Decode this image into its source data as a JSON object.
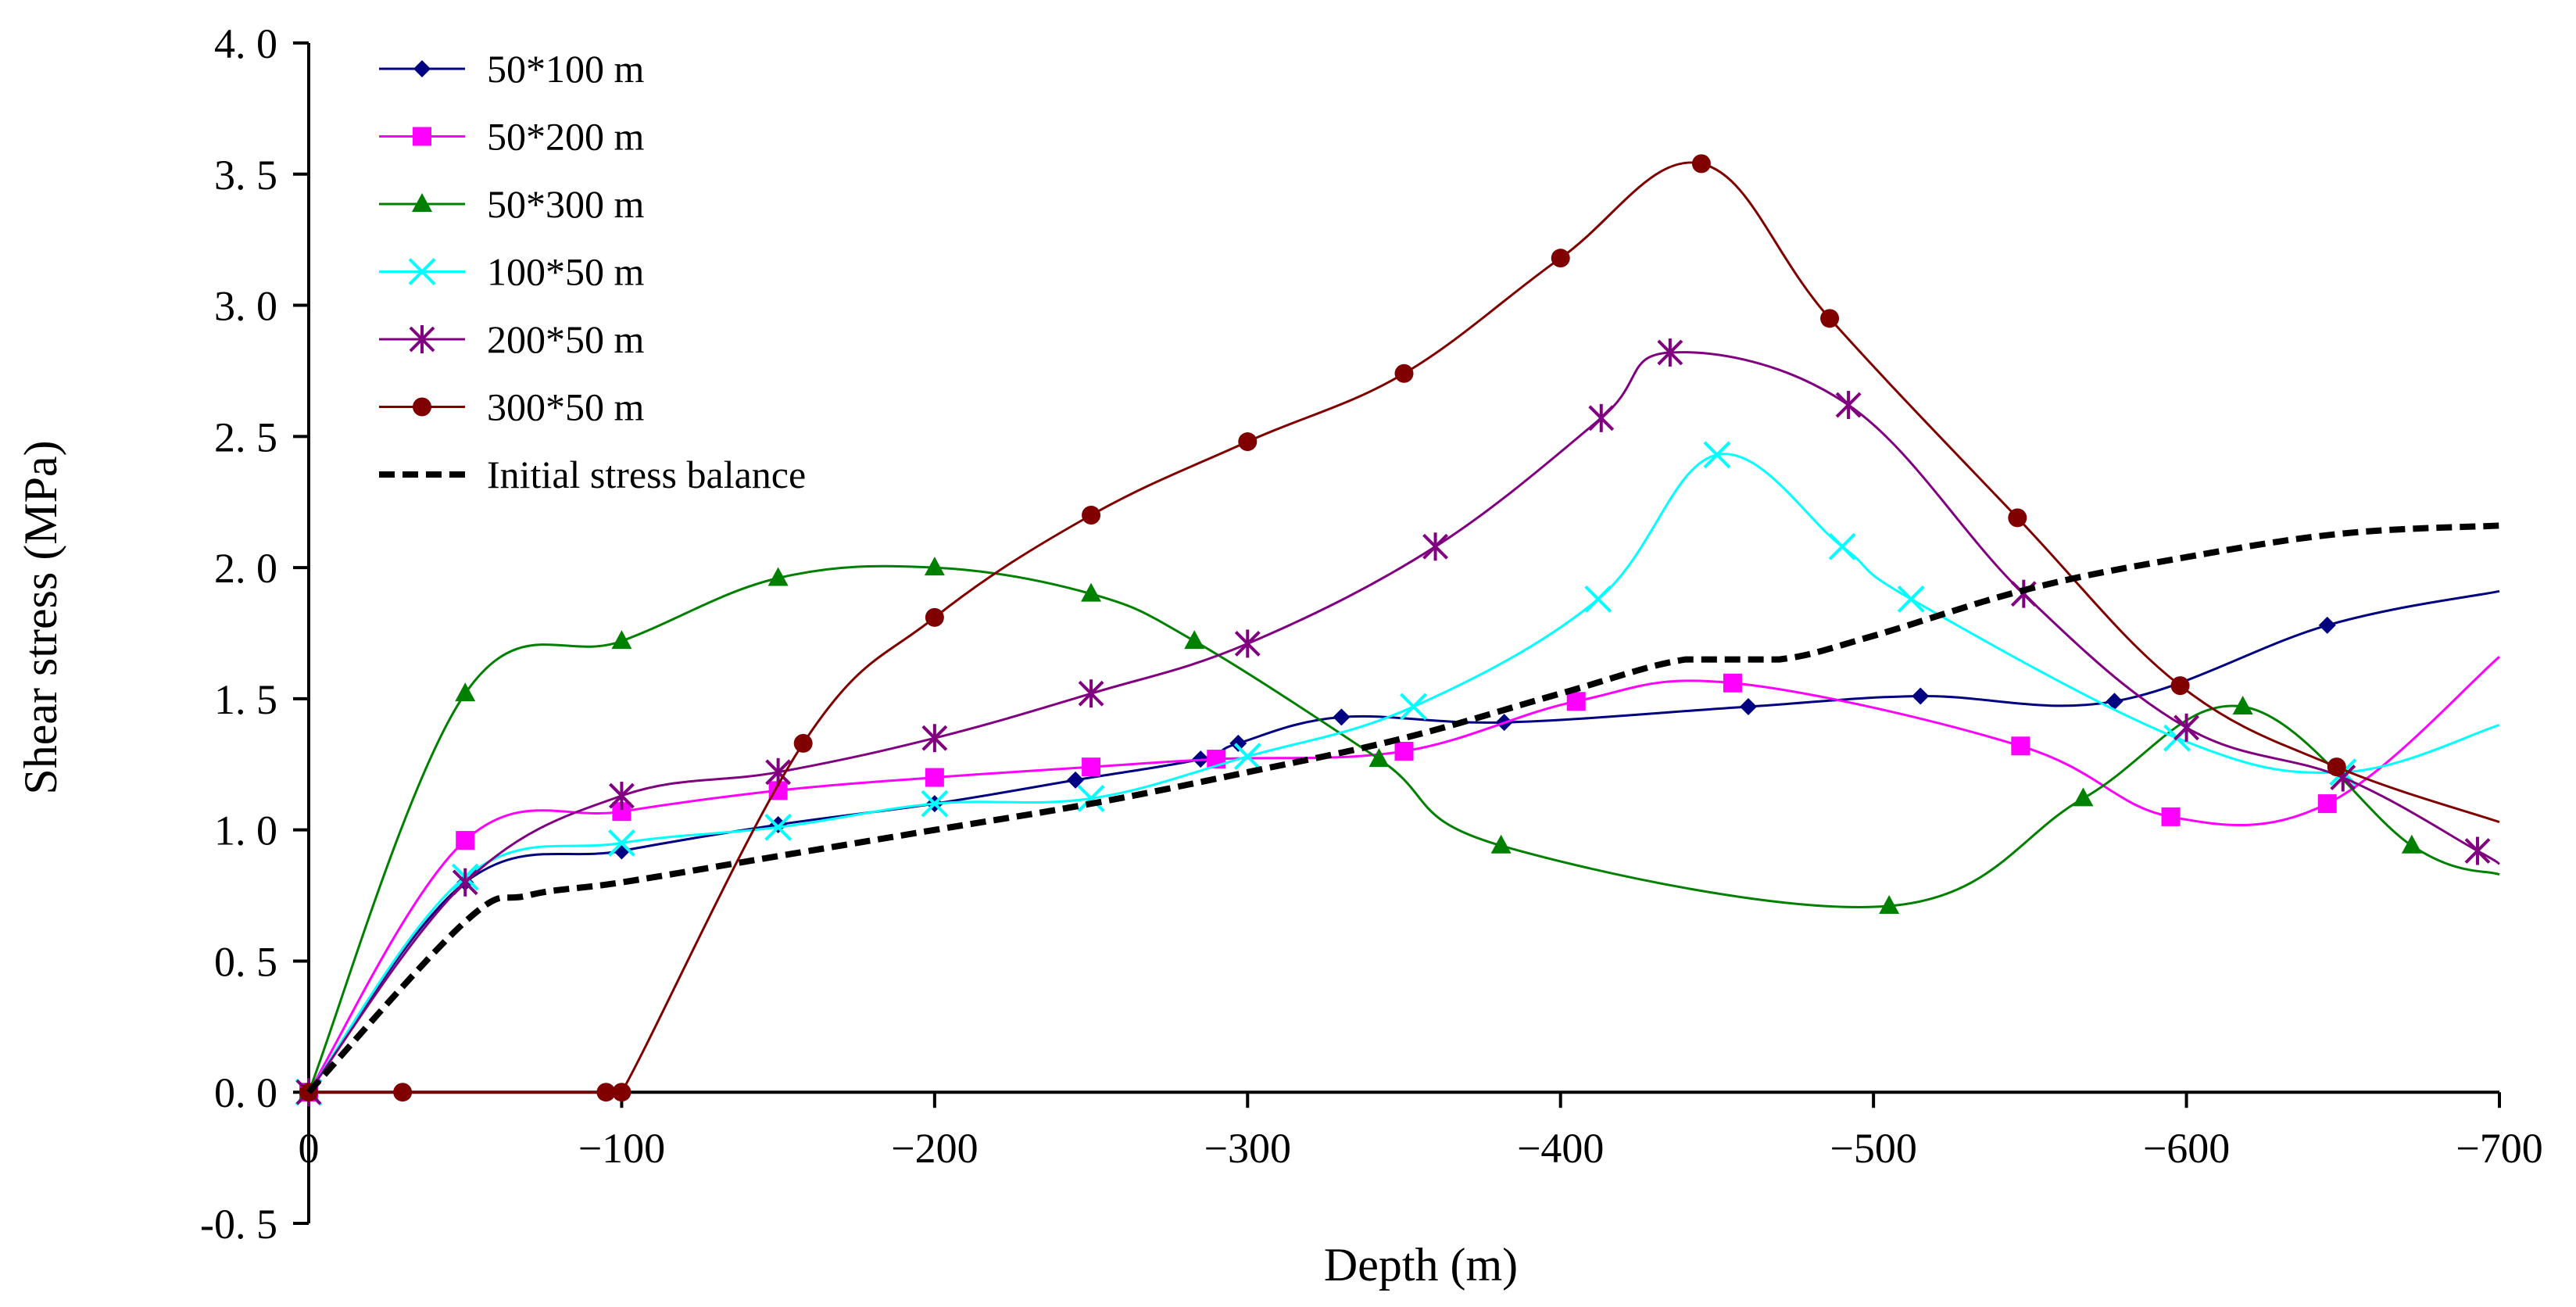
{
  "chart_data": {
    "type": "line",
    "title": "",
    "xlabel": "Depth (m)",
    "ylabel": "Shear stress (MPa)",
    "xlim": [
      0,
      -700
    ],
    "ylim": [
      -0.5,
      4.0
    ],
    "x_ticks": [
      0,
      -100,
      -200,
      -300,
      -400,
      -500,
      -600,
      -700
    ],
    "x_tick_labels": [
      "0",
      "−100",
      "−200",
      "−300",
      "−400",
      "−500",
      "−600",
      "−700"
    ],
    "y_ticks": [
      -0.5,
      0.0,
      0.5,
      1.0,
      1.5,
      2.0,
      2.5,
      3.0,
      3.5,
      4.0
    ],
    "y_tick_labels": [
      "-0. 5",
      "0. 0",
      "0. 5",
      "1. 0",
      "1. 5",
      "2. 0",
      "2. 5",
      "3. 0",
      "3. 5",
      "4. 0"
    ],
    "grid": false,
    "legend_position": "top-left",
    "series": [
      {
        "name": "50*100 m",
        "color": "#000080",
        "marker": "diamond",
        "points": [
          [
            0,
            0
          ],
          [
            -50,
            0.8
          ],
          [
            -100,
            0.92
          ],
          [
            -150,
            1.02
          ],
          [
            -200,
            1.1
          ],
          [
            -245,
            1.19
          ],
          [
            -285,
            1.27
          ],
          [
            -297,
            1.33
          ],
          [
            -330,
            1.43
          ],
          [
            -382,
            1.41
          ],
          [
            -460,
            1.47
          ],
          [
            -515,
            1.51
          ],
          [
            -577,
            1.49
          ],
          [
            -645,
            1.78
          ],
          [
            -700,
            1.91
          ]
        ]
      },
      {
        "name": "50*200 m",
        "color": "#ff00ff",
        "marker": "square",
        "points": [
          [
            0,
            0
          ],
          [
            -50,
            0.96
          ],
          [
            -100,
            1.07
          ],
          [
            -150,
            1.15
          ],
          [
            -200,
            1.2
          ],
          [
            -250,
            1.24
          ],
          [
            -290,
            1.27
          ],
          [
            -350,
            1.3
          ],
          [
            -405,
            1.49
          ],
          [
            -455,
            1.56
          ],
          [
            -547,
            1.32
          ],
          [
            -595,
            1.05
          ],
          [
            -645,
            1.1
          ],
          [
            -700,
            1.66
          ]
        ]
      },
      {
        "name": "50*300 m",
        "color": "#008000",
        "marker": "triangle",
        "points": [
          [
            0,
            0
          ],
          [
            -50,
            1.52
          ],
          [
            -100,
            1.72
          ],
          [
            -150,
            1.96
          ],
          [
            -200,
            2.0
          ],
          [
            -250,
            1.9
          ],
          [
            -283,
            1.72
          ],
          [
            -342,
            1.27
          ],
          [
            -381,
            0.94
          ],
          [
            -505,
            0.71
          ],
          [
            -567,
            1.12
          ],
          [
            -618,
            1.47
          ],
          [
            -672,
            0.94
          ],
          [
            -700,
            0.83
          ]
        ]
      },
      {
        "name": "100*50 m",
        "color": "#00ffff",
        "marker": "x",
        "points": [
          [
            0,
            0
          ],
          [
            -50,
            0.82
          ],
          [
            -100,
            0.95
          ],
          [
            -150,
            1.01
          ],
          [
            -200,
            1.1
          ],
          [
            -250,
            1.12
          ],
          [
            -300,
            1.28
          ],
          [
            -353,
            1.47
          ],
          [
            -412,
            1.88
          ],
          [
            -450,
            2.43
          ],
          [
            -490,
            2.08
          ],
          [
            -512,
            1.88
          ],
          [
            -597,
            1.35
          ],
          [
            -650,
            1.22
          ],
          [
            -700,
            1.4
          ]
        ]
      },
      {
        "name": "200*50 m",
        "color": "#800080",
        "marker": "star",
        "points": [
          [
            0,
            0
          ],
          [
            -50,
            0.8
          ],
          [
            -100,
            1.13
          ],
          [
            -150,
            1.22
          ],
          [
            -200,
            1.35
          ],
          [
            -250,
            1.52
          ],
          [
            -300,
            1.71
          ],
          [
            -360,
            2.08
          ],
          [
            -413,
            2.57
          ],
          [
            -435,
            2.82
          ],
          [
            -492,
            2.62
          ],
          [
            -548,
            1.9
          ],
          [
            -600,
            1.39
          ],
          [
            -650,
            1.2
          ],
          [
            -693,
            0.92
          ],
          [
            -700,
            0.87
          ]
        ]
      },
      {
        "name": "300*50 m",
        "color": "#800000",
        "marker": "circle",
        "points": [
          [
            0,
            0
          ],
          [
            -30,
            0
          ],
          [
            -95,
            0
          ],
          [
            -100,
            0
          ],
          [
            -158,
            1.33
          ],
          [
            -200,
            1.81
          ],
          [
            -250,
            2.2
          ],
          [
            -300,
            2.48
          ],
          [
            -350,
            2.74
          ],
          [
            -400,
            3.18
          ],
          [
            -445,
            3.54
          ],
          [
            -486,
            2.95
          ],
          [
            -546,
            2.19
          ],
          [
            -598,
            1.55
          ],
          [
            -648,
            1.24
          ],
          [
            -700,
            1.03
          ]
        ]
      },
      {
        "name": "Initial stress balance",
        "color": "#000000",
        "marker": "none",
        "dashed": true,
        "points": [
          [
            0,
            0
          ],
          [
            -50,
            0.65
          ],
          [
            -70,
            0.75
          ],
          [
            -100,
            0.8
          ],
          [
            -150,
            0.9
          ],
          [
            -200,
            1.0
          ],
          [
            -250,
            1.1
          ],
          [
            -300,
            1.22
          ],
          [
            -350,
            1.35
          ],
          [
            -400,
            1.52
          ],
          [
            -440,
            1.65
          ],
          [
            -470,
            1.65
          ],
          [
            -500,
            1.74
          ],
          [
            -550,
            1.92
          ],
          [
            -600,
            2.04
          ],
          [
            -650,
            2.13
          ],
          [
            -700,
            2.16
          ]
        ]
      }
    ]
  }
}
